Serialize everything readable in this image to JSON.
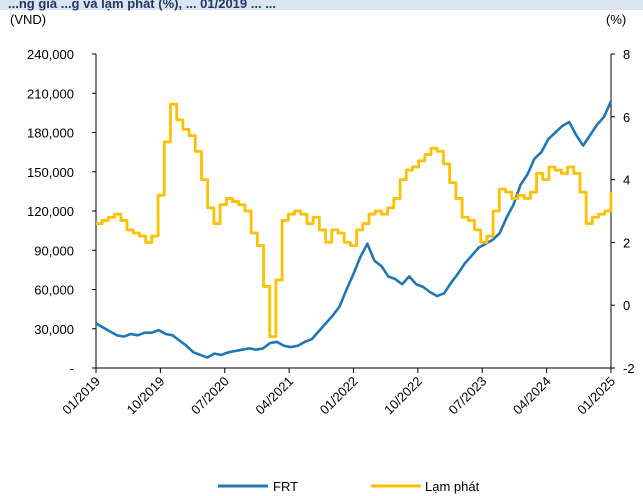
{
  "chart_data": {
    "type": "line",
    "title": "...ng giá ...g và lạm phát (%), ... 01/2019 ... ...",
    "y_left_unit": "(VND)",
    "y_right_unit": "(%)",
    "y_left_ticks": [
      "-",
      "30,000",
      "60,000",
      "90,000",
      "120,000",
      "150,000",
      "180,000",
      "210,000",
      "240,000"
    ],
    "y_left_ylim": [
      0,
      240000
    ],
    "y_right_ticks": [
      "-2",
      "0",
      "2",
      "4",
      "6",
      "8"
    ],
    "y_right_ylim": [
      -2,
      8
    ],
    "x_tick_labels": [
      "01/2019",
      "10/2019",
      "07/2020",
      "04/2021",
      "01/2022",
      "10/2022",
      "07/2023",
      "04/2024",
      "01/2025"
    ],
    "x_range_months": [
      0,
      74
    ],
    "legend_position": "bottom",
    "series": [
      {
        "name": "FRT",
        "axis": "left",
        "color": "#1f77b4",
        "points": [
          [
            0,
            34000
          ],
          [
            1,
            31000
          ],
          [
            2,
            28000
          ],
          [
            3,
            25000
          ],
          [
            4,
            24000
          ],
          [
            5,
            26000
          ],
          [
            6,
            25000
          ],
          [
            7,
            27000
          ],
          [
            8,
            27000
          ],
          [
            9,
            29000
          ],
          [
            10,
            26000
          ],
          [
            11,
            25000
          ],
          [
            12,
            21000
          ],
          [
            13,
            17000
          ],
          [
            14,
            12000
          ],
          [
            15,
            10000
          ],
          [
            16,
            8000
          ],
          [
            17,
            11000
          ],
          [
            18,
            10000
          ],
          [
            19,
            12000
          ],
          [
            20,
            13000
          ],
          [
            21,
            14000
          ],
          [
            22,
            15000
          ],
          [
            23,
            14000
          ],
          [
            24,
            15000
          ],
          [
            25,
            19000
          ],
          [
            26,
            20000
          ],
          [
            27,
            17000
          ],
          [
            28,
            16000
          ],
          [
            29,
            17000
          ],
          [
            30,
            20000
          ],
          [
            31,
            22000
          ],
          [
            32,
            28000
          ],
          [
            33,
            34000
          ],
          [
            34,
            40000
          ],
          [
            35,
            47000
          ],
          [
            36,
            60000
          ],
          [
            37,
            72000
          ],
          [
            38,
            85000
          ],
          [
            39,
            95000
          ],
          [
            40,
            82000
          ],
          [
            41,
            78000
          ],
          [
            42,
            70000
          ],
          [
            43,
            68000
          ],
          [
            44,
            64000
          ],
          [
            45,
            70000
          ],
          [
            46,
            64000
          ],
          [
            47,
            62000
          ],
          [
            48,
            58000
          ],
          [
            49,
            55000
          ],
          [
            50,
            57000
          ],
          [
            51,
            65000
          ],
          [
            52,
            72000
          ],
          [
            53,
            80000
          ],
          [
            54,
            86000
          ],
          [
            55,
            92000
          ],
          [
            56,
            95000
          ],
          [
            57,
            98000
          ],
          [
            58,
            103000
          ],
          [
            59,
            115000
          ],
          [
            60,
            125000
          ],
          [
            61,
            140000
          ],
          [
            62,
            148000
          ],
          [
            63,
            160000
          ],
          [
            64,
            165000
          ],
          [
            65,
            175000
          ],
          [
            66,
            180000
          ],
          [
            67,
            185000
          ],
          [
            68,
            188000
          ],
          [
            69,
            178000
          ],
          [
            70,
            170000
          ],
          [
            71,
            178000
          ],
          [
            72,
            186000
          ],
          [
            73,
            192000
          ],
          [
            74,
            204000
          ]
        ]
      },
      {
        "name": "Lạm phát",
        "axis": "right",
        "color": "#ffc000",
        "points": [
          [
            0,
            2.6
          ],
          [
            1,
            2.7
          ],
          [
            2,
            2.8
          ],
          [
            3,
            2.9
          ],
          [
            4,
            2.7
          ],
          [
            5,
            2.4
          ],
          [
            6,
            2.3
          ],
          [
            7,
            2.2
          ],
          [
            8,
            2.0
          ],
          [
            9,
            2.2
          ],
          [
            10,
            3.5
          ],
          [
            11,
            5.2
          ],
          [
            12,
            6.4
          ],
          [
            13,
            5.9
          ],
          [
            14,
            5.6
          ],
          [
            15,
            5.4
          ],
          [
            16,
            4.9
          ],
          [
            17,
            4.0
          ],
          [
            18,
            3.1
          ],
          [
            19,
            2.6
          ],
          [
            20,
            3.2
          ],
          [
            21,
            3.4
          ],
          [
            22,
            3.3
          ],
          [
            23,
            3.2
          ],
          [
            24,
            3.0
          ],
          [
            25,
            2.3
          ],
          [
            26,
            1.9
          ],
          [
            27,
            0.6
          ],
          [
            28,
            -1.0
          ],
          [
            29,
            0.8
          ],
          [
            30,
            2.7
          ],
          [
            31,
            2.9
          ],
          [
            32,
            3.0
          ],
          [
            33,
            2.9
          ],
          [
            34,
            2.6
          ],
          [
            35,
            2.8
          ],
          [
            36,
            2.4
          ],
          [
            37,
            2.0
          ],
          [
            38,
            2.4
          ],
          [
            39,
            2.3
          ],
          [
            40,
            2.0
          ],
          [
            41,
            1.9
          ],
          [
            42,
            2.4
          ],
          [
            43,
            2.6
          ],
          [
            44,
            2.9
          ],
          [
            45,
            3.0
          ],
          [
            46,
            2.9
          ],
          [
            47,
            3.1
          ],
          [
            48,
            3.4
          ],
          [
            49,
            4.0
          ],
          [
            50,
            4.3
          ],
          [
            51,
            4.4
          ],
          [
            52,
            4.6
          ],
          [
            53,
            4.8
          ],
          [
            54,
            5.0
          ],
          [
            55,
            4.9
          ],
          [
            56,
            4.5
          ],
          [
            57,
            3.9
          ],
          [
            58,
            3.4
          ],
          [
            59,
            2.8
          ],
          [
            60,
            2.7
          ],
          [
            61,
            2.4
          ],
          [
            62,
            2.0
          ],
          [
            63,
            2.2
          ],
          [
            64,
            3.0
          ],
          [
            65,
            3.7
          ],
          [
            66,
            3.6
          ],
          [
            67,
            3.4
          ],
          [
            68,
            3.5
          ],
          [
            69,
            3.4
          ],
          [
            70,
            3.6
          ],
          [
            71,
            4.2
          ],
          [
            72,
            4.0
          ],
          [
            73,
            4.4
          ],
          [
            74,
            4.3
          ],
          [
            75,
            4.2
          ],
          [
            76,
            4.4
          ],
          [
            77,
            4.2
          ],
          [
            78,
            3.6
          ],
          [
            79,
            2.6
          ],
          [
            80,
            2.8
          ],
          [
            81,
            2.9
          ],
          [
            82,
            3.0
          ],
          [
            83,
            3.6
          ]
        ]
      }
    ]
  }
}
